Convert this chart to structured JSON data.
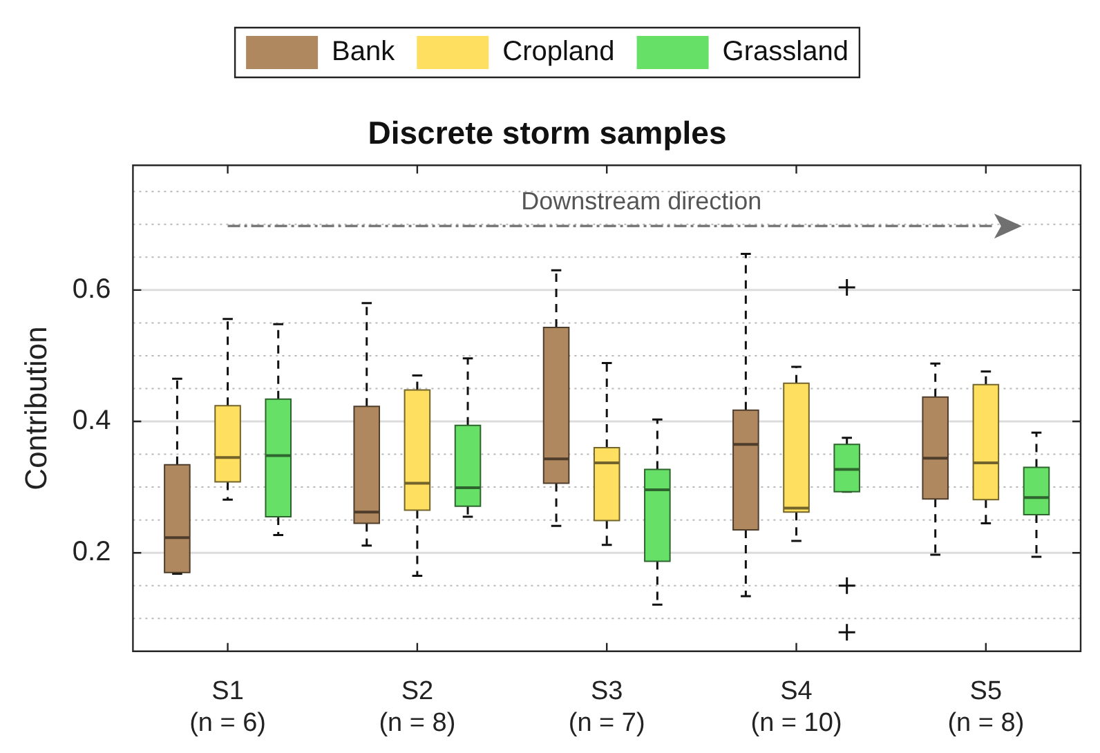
{
  "chart_data": {
    "type": "box",
    "title": "Discrete storm samples",
    "ylabel": "Contribution",
    "categories": [
      "S1\n(n = 6)",
      "S2\n(n = 8)",
      "S3\n(n = 7)",
      "S4\n(n = 10)",
      "S5\n(n = 8)"
    ],
    "ylim": [
      0.05,
      0.79
    ],
    "yticks": [
      {
        "value": 0.1,
        "label": null
      },
      {
        "value": 0.15,
        "label": null
      },
      0.2,
      {
        "value": 0.25,
        "label": null
      },
      {
        "value": 0.3,
        "label": null
      },
      {
        "value": 0.35,
        "label": null
      },
      0.4,
      {
        "value": 0.45,
        "label": null
      },
      {
        "value": 0.5,
        "label": null
      },
      {
        "value": 0.55,
        "label": null
      },
      0.6,
      {
        "value": 0.65,
        "label": null
      },
      {
        "value": 0.7,
        "label": null
      },
      {
        "value": 0.75,
        "label": null
      }
    ],
    "grid": true,
    "legend": "top",
    "annotations": [
      "Downstream direction"
    ],
    "series": [
      {
        "name": "Bank",
        "color": "#b08860",
        "boxes": [
          {
            "low": 0.168,
            "q1": 0.17,
            "median": 0.223,
            "q3": 0.334,
            "high": 0.465
          },
          {
            "low": 0.211,
            "q1": 0.245,
            "median": 0.262,
            "q3": 0.423,
            "high": 0.58
          },
          {
            "low": 0.241,
            "q1": 0.306,
            "median": 0.343,
            "q3": 0.543,
            "high": 0.63
          },
          {
            "low": 0.134,
            "q1": 0.235,
            "median": 0.365,
            "q3": 0.417,
            "high": 0.655
          },
          {
            "low": 0.197,
            "q1": 0.282,
            "median": 0.344,
            "q3": 0.437,
            "high": 0.488
          }
        ]
      },
      {
        "name": "Cropland",
        "color": "#ffdf60",
        "boxes": [
          {
            "low": 0.281,
            "q1": 0.308,
            "median": 0.345,
            "q3": 0.424,
            "high": 0.556
          },
          {
            "low": 0.165,
            "q1": 0.265,
            "median": 0.306,
            "q3": 0.448,
            "high": 0.47
          },
          {
            "low": 0.212,
            "q1": 0.249,
            "median": 0.337,
            "q3": 0.36,
            "high": 0.489
          },
          {
            "low": 0.218,
            "q1": 0.262,
            "median": 0.268,
            "q3": 0.458,
            "high": 0.483
          },
          {
            "low": 0.245,
            "q1": 0.281,
            "median": 0.337,
            "q3": 0.456,
            "high": 0.476
          }
        ]
      },
      {
        "name": "Grassland",
        "color": "#66e066",
        "boxes": [
          {
            "low": 0.227,
            "q1": 0.255,
            "median": 0.348,
            "q3": 0.434,
            "high": 0.548
          },
          {
            "low": 0.255,
            "q1": 0.271,
            "median": 0.299,
            "q3": 0.394,
            "high": 0.496
          },
          {
            "low": 0.121,
            "q1": 0.187,
            "median": 0.296,
            "q3": 0.327,
            "high": 0.403
          },
          {
            "low": 0.293,
            "q1": 0.293,
            "median": 0.327,
            "q3": 0.365,
            "high": 0.375,
            "outliers": [
              0.604,
              0.15,
              0.079
            ]
          },
          {
            "low": 0.194,
            "q1": 0.258,
            "median": 0.284,
            "q3": 0.33,
            "high": 0.383
          }
        ]
      }
    ]
  }
}
